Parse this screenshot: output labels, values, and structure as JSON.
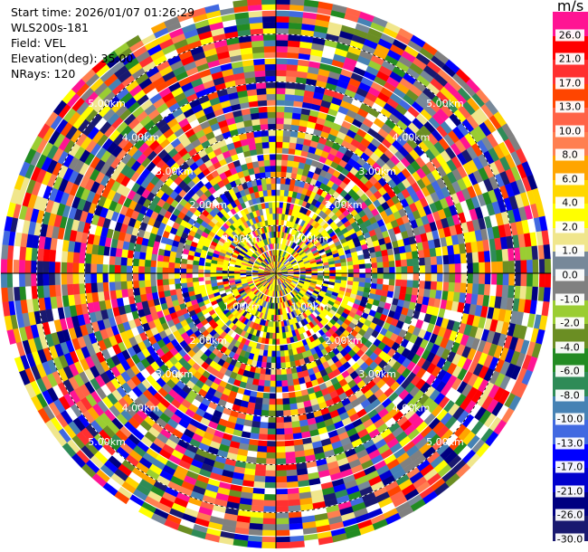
{
  "info": {
    "start_time": "Start time: 2026/01/07 01:26:29",
    "instrument": "WLS200s-181",
    "field": "Field: VEL",
    "elevation": "Elevation(deg): 35.00",
    "nrays": "NRays: 120"
  },
  "range_rings": [
    {
      "label": "1.00km",
      "km": 1
    },
    {
      "label": "2.00km",
      "km": 2
    },
    {
      "label": "3.00km",
      "km": 3
    },
    {
      "label": "4.00km",
      "km": 4
    },
    {
      "label": "5.00km",
      "km": 5
    }
  ],
  "colorbar": {
    "unit": "m/s",
    "ticks": [
      "26.0",
      "21.0",
      "17.0",
      "13.0",
      "10.0",
      "8.0",
      "6.0",
      "4.0",
      "2.0",
      "1.0",
      "0.0",
      "-1.0",
      "-2.0",
      "-4.0",
      "-6.0",
      "-8.0",
      "-10.0",
      "-13.0",
      "-17.0",
      "-21.0",
      "-26.0",
      "-30.0"
    ],
    "colors": [
      "#ff1493",
      "#ff0000",
      "#ff3030",
      "#ff4500",
      "#ff6347",
      "#ff7f50",
      "#ffa500",
      "#ffd700",
      "#ffff00",
      "#f0e68c",
      "#778899",
      "#808080",
      "#9acd32",
      "#6b8e23",
      "#228b22",
      "#2e8b57",
      "#4682b4",
      "#4169e1",
      "#0000ff",
      "#0000cd",
      "#000080",
      "#191970"
    ]
  }
}
